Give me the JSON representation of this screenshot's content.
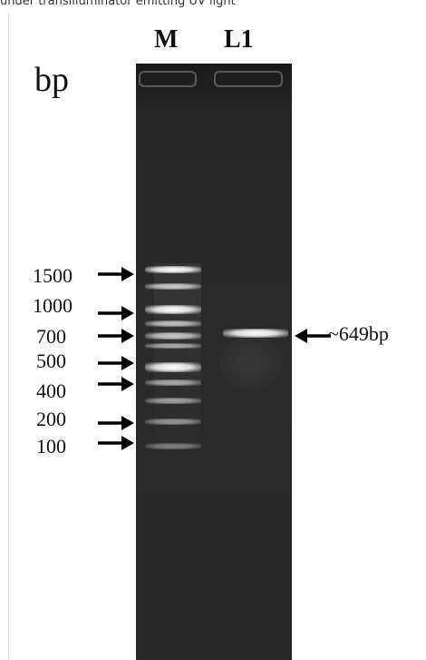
{
  "caption": "under transilluminator emitting UV light",
  "lanes": {
    "marker": "M",
    "sample": "L1"
  },
  "unit": "bp",
  "ladder": [
    "1500",
    "1000",
    "700",
    "500",
    "400",
    "200",
    "100"
  ],
  "sample_band": "~649bp"
}
